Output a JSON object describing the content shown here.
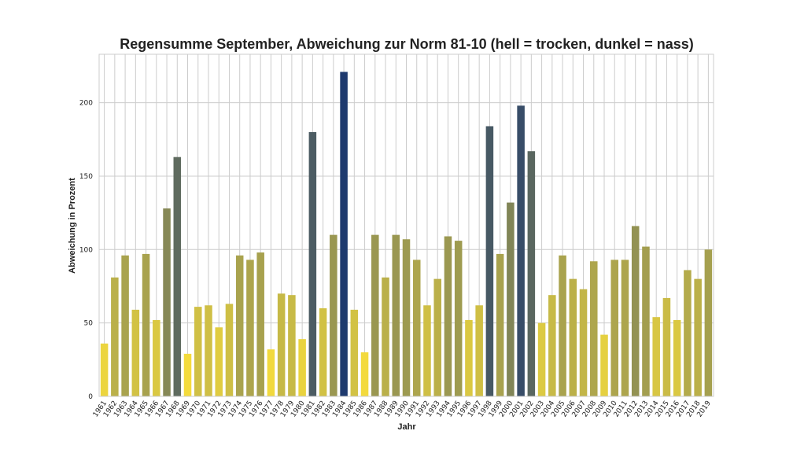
{
  "chart_data": {
    "type": "bar",
    "title": "Regensumme September, Abweichung zur Norm 81-10 (hell = trocken, dunkel = nass)",
    "xlabel": "Jahr",
    "ylabel": "Abweichung in Prozent",
    "ylim": [
      0,
      233
    ],
    "yticks": [
      0,
      50,
      100,
      150,
      200
    ],
    "grid": true,
    "legend": "none",
    "color_scale": {
      "low": "#f5dc3c",
      "high": "#1e3a6e",
      "min_value": 28,
      "max_value": 221
    },
    "categories": [
      "1961",
      "1962",
      "1963",
      "1964",
      "1965",
      "1966",
      "1967",
      "1968",
      "1969",
      "1970",
      "1971",
      "1972",
      "1973",
      "1974",
      "1975",
      "1976",
      "1977",
      "1978",
      "1979",
      "1980",
      "1981",
      "1982",
      "1983",
      "1984",
      "1985",
      "1986",
      "1987",
      "1988",
      "1989",
      "1990",
      "1991",
      "1992",
      "1993",
      "1994",
      "1995",
      "1996",
      "1997",
      "1998",
      "1999",
      "2000",
      "2001",
      "2002",
      "2003",
      "2004",
      "2005",
      "2006",
      "2007",
      "2008",
      "2009",
      "2010",
      "2011",
      "2012",
      "2013",
      "2014",
      "2015",
      "2016",
      "2017",
      "2018",
      "2019"
    ],
    "values": [
      36,
      81,
      96,
      59,
      97,
      52,
      128,
      163,
      29,
      61,
      62,
      47,
      63,
      96,
      93,
      98,
      32,
      70,
      69,
      39,
      180,
      60,
      110,
      221,
      59,
      30,
      110,
      81,
      110,
      107,
      93,
      62,
      80,
      109,
      106,
      52,
      62,
      184,
      97,
      132,
      198,
      167,
      50,
      69,
      96,
      80,
      73,
      92,
      42,
      93,
      93,
      116,
      102,
      54,
      67,
      52,
      86,
      80,
      100
    ]
  }
}
